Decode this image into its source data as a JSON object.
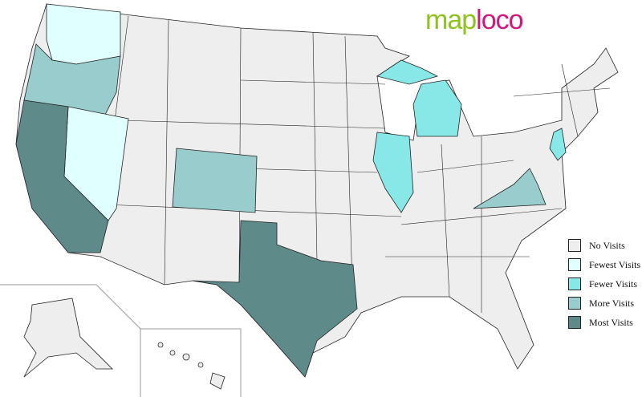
{
  "logo": {
    "part1": "map",
    "part2": "loco"
  },
  "legend": [
    {
      "label": "No Visits",
      "color": "#eeeeee"
    },
    {
      "label": "Fewest Visits",
      "color": "#e0ffff"
    },
    {
      "label": "Fewer Visits",
      "color": "#88e8e8"
    },
    {
      "label": "More Visits",
      "color": "#99cccc"
    },
    {
      "label": "Most Visits",
      "color": "#5f8a8a"
    }
  ],
  "states": {
    "Washington": "Fewest Visits",
    "Nevada": "Fewest Visits",
    "Oregon": "More Visits",
    "Colorado": "More Visits",
    "Virginia": "More Visits",
    "Illinois": "Fewer Visits",
    "Michigan": "Fewer Visits",
    "New Jersey": "Fewer Visits",
    "California": "Most Visits",
    "Texas": "Most Visits"
  }
}
